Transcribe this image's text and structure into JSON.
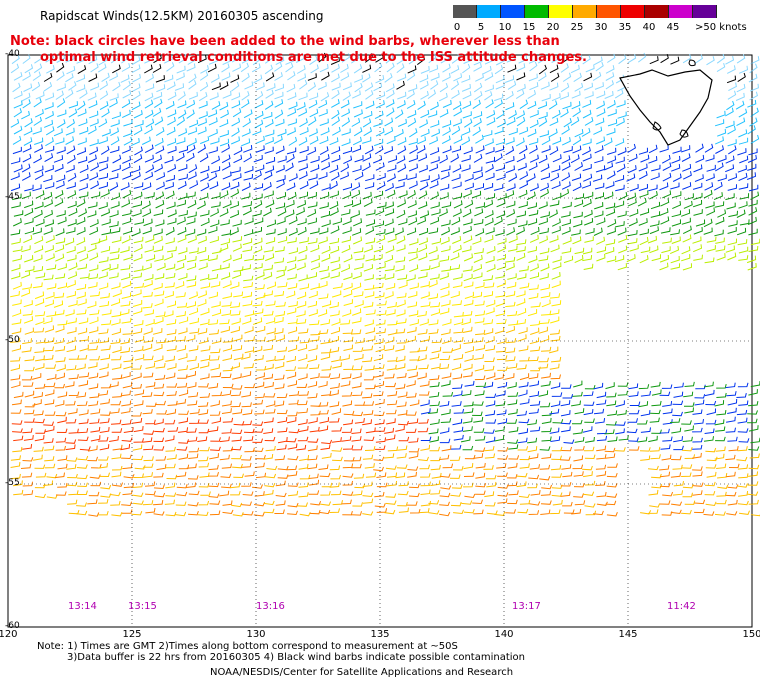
{
  "header": {
    "title": "Rapidscat Winds(12.5KM) 20160305 ascending",
    "note_line1": "Note: black circles have been added to the wind barbs, wherever less than",
    "note_line2": "optimal wind retrieval conditions are met due to the ISS attitude changes."
  },
  "legend": {
    "units": ">50 knots",
    "labels": [
      "0",
      "5",
      "10",
      "15",
      "20",
      "25",
      "30",
      "35",
      "40",
      "45"
    ],
    "colors": [
      "#555555",
      "#00aaff",
      "#0055ff",
      "#00bb00",
      "#ffff00",
      "#ffaa00",
      "#ff5500",
      "#ee0000",
      "#aa0000",
      "#cc00cc",
      "#660099"
    ]
  },
  "axes": {
    "lat_labels": [
      "-40",
      "-45",
      "-50",
      "-55",
      "-60"
    ],
    "lat_values": [
      -40,
      -45,
      -50,
      -55,
      -60
    ],
    "lon_labels": [
      "120",
      "125",
      "130",
      "135",
      "140",
      "145",
      "150"
    ],
    "lon_values": [
      120,
      125,
      130,
      135,
      140,
      145,
      150
    ],
    "lon_range": [
      120,
      150
    ],
    "lat_range": [
      -40,
      -60
    ]
  },
  "times": {
    "t1": "13:14",
    "t2": "13:15",
    "t3": "13:16",
    "t4": "13:17",
    "t5": "11:42"
  },
  "footer": {
    "line1": "Note: 1) Times are GMT 2)Times along bottom correspond to measurement at ~50S",
    "line2": "3)Data buffer is 22 hrs from 20160305 4) Black wind barbs indicate possible contamination",
    "credit": "NOAA/NESDIS/Center for Satellite Applications and Research"
  }
}
